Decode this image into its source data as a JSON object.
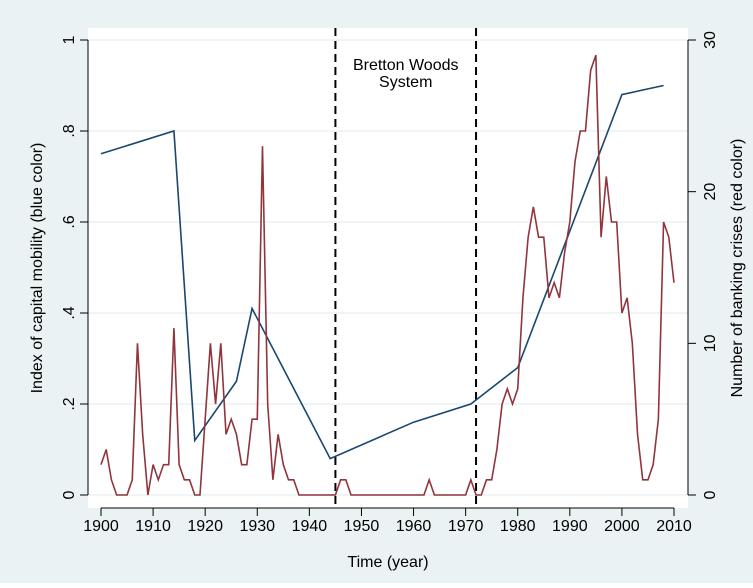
{
  "chart_data": {
    "type": "line",
    "xlabel": "Time (year)",
    "ylabel": "Index of capital mobility (blue color)",
    "y2label": "Number of banking crises (red color)",
    "annotations": [
      "Bretton Woods",
      "System"
    ],
    "vlines": [
      1945,
      1972
    ],
    "xlim": [
      1900,
      2010
    ],
    "xticks": [
      1900,
      1910,
      1920,
      1930,
      1940,
      1950,
      1960,
      1970,
      1980,
      1990,
      2000,
      2010
    ],
    "ylim": [
      0,
      1
    ],
    "yticks": [
      0,
      {
        "value": 0.2,
        "label": ".2"
      },
      {
        "value": 0.4,
        "label": ".4"
      },
      {
        "value": 0.6,
        "label": ".6"
      },
      {
        "value": 0.8,
        "label": ".8"
      },
      1
    ],
    "y2lim": [
      0,
      30
    ],
    "y2ticks": [
      0,
      10,
      20,
      30
    ],
    "grid": true,
    "series": [
      {
        "color": "#1a476f",
        "x": [
          1900,
          1914,
          1918,
          1926,
          1929,
          1944,
          1960,
          1971,
          1980,
          2000,
          2008
        ],
        "values": [
          0.75,
          0.8,
          0.12,
          0.25,
          0.41,
          0.08,
          0.16,
          0.2,
          0.28,
          0.88,
          0.9
        ]
      },
      {
        "color": "#90353b",
        "axis": "y2",
        "x": [
          1900,
          1901,
          1902,
          1903,
          1904,
          1905,
          1906,
          1907,
          1908,
          1909,
          1910,
          1911,
          1912,
          1913,
          1914,
          1915,
          1916,
          1917,
          1918,
          1919,
          1920,
          1921,
          1922,
          1923,
          1924,
          1925,
          1926,
          1927,
          1928,
          1929,
          1930,
          1931,
          1932,
          1933,
          1934,
          1935,
          1936,
          1937,
          1938,
          1939,
          1940,
          1941,
          1942,
          1943,
          1944,
          1945,
          1946,
          1947,
          1948,
          1949,
          1950,
          1951,
          1952,
          1953,
          1954,
          1955,
          1956,
          1957,
          1958,
          1959,
          1960,
          1961,
          1962,
          1963,
          1964,
          1965,
          1966,
          1967,
          1968,
          1969,
          1970,
          1971,
          1972,
          1973,
          1974,
          1975,
          1976,
          1977,
          1978,
          1979,
          1980,
          1981,
          1982,
          1983,
          1984,
          1985,
          1986,
          1987,
          1988,
          1989,
          1990,
          1991,
          1992,
          1993,
          1994,
          1995,
          1996,
          1997,
          1998,
          1999,
          2000,
          2001,
          2002,
          2003,
          2004,
          2005,
          2006,
          2007,
          2008,
          2009,
          2010
        ],
        "values": [
          2,
          3,
          1,
          0,
          0,
          0,
          1,
          10,
          4,
          0,
          2,
          1,
          2,
          2,
          11,
          2,
          1,
          1,
          0,
          0,
          5,
          10,
          6,
          10,
          4,
          5,
          4,
          2,
          2,
          5,
          5,
          23,
          6,
          1,
          4,
          2,
          1,
          1,
          0,
          0,
          0,
          0,
          0,
          0,
          0,
          0,
          1,
          1,
          0,
          0,
          0,
          0,
          0,
          0,
          0,
          0,
          0,
          0,
          0,
          0,
          0,
          0,
          0,
          1,
          0,
          0,
          0,
          0,
          0,
          0,
          0,
          1,
          0,
          0,
          1,
          1,
          3,
          6,
          7,
          6,
          7,
          13,
          17,
          19,
          17,
          17,
          13,
          14,
          13,
          16,
          18,
          22,
          24,
          24,
          28,
          29,
          17,
          21,
          18,
          18,
          12,
          13,
          10,
          4,
          1,
          1,
          2,
          5,
          18,
          17,
          14
        ]
      }
    ]
  }
}
